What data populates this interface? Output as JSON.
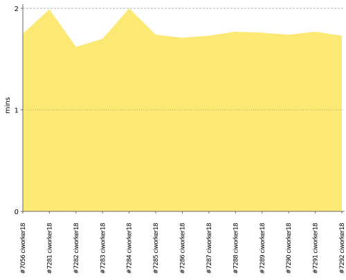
{
  "chart_data": {
    "type": "area",
    "y_label": "mins",
    "categories": [
      "#7056 ciworker18",
      "#7281 ciworker18",
      "#7282 ciworker18",
      "#7283 ciworker18",
      "#7284 ciworker18",
      "#7285 ciworker18",
      "#7286 ciworker18",
      "#7287 ciworker18",
      "#7288 ciworker18",
      "#7289 ciworker18",
      "#7290 ciworker18",
      "#7291 ciworker18",
      "#7292 ciworker18"
    ],
    "values": [
      1.75,
      1.99,
      1.62,
      1.7,
      2.0,
      1.74,
      1.71,
      1.73,
      1.77,
      1.76,
      1.74,
      1.77,
      1.73
    ],
    "color": "#fbe973",
    "ylim": [
      0,
      2
    ],
    "yticks": [
      0,
      1,
      2
    ],
    "grid": true
  }
}
